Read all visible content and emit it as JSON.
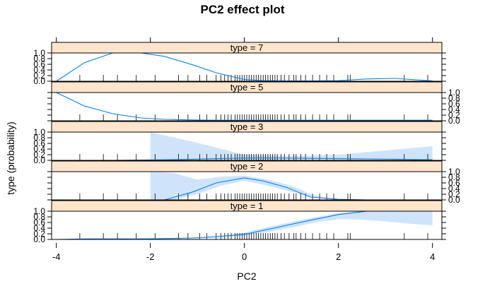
{
  "chart_data": {
    "type": "line",
    "title": "PC2 effect plot",
    "xlabel": "PC2",
    "ylabel": "type (probability)",
    "xlim": [
      -4.1,
      4.2
    ],
    "ylim": [
      0,
      1
    ],
    "x_ticks": [
      "-4",
      "-2",
      "0",
      "2",
      "4"
    ],
    "y_ticks": [
      "0.0",
      "0.2",
      "0.4",
      "0.6",
      "0.8",
      "1.0"
    ],
    "x": [
      -4.0,
      -3.4,
      -2.8,
      -2.2,
      -1.7,
      -1.1,
      -0.6,
      0.0,
      0.4,
      0.9,
      1.4,
      2.0,
      2.6,
      3.2,
      4.0
    ],
    "line_color": "#0080ff",
    "band_color": "#cfe4fb",
    "strip_color": "#ffe5cc",
    "panels": [
      {
        "label": "type = 7",
        "fit": [
          0.0,
          0.66,
          1.0,
          1.0,
          0.88,
          0.58,
          0.3,
          0.06,
          0.02,
          0.01,
          0.01,
          0.02,
          0.08,
          0.1,
          0.01
        ],
        "band": null
      },
      {
        "label": "type = 5",
        "fit": [
          1.0,
          0.52,
          0.25,
          0.1,
          0.05,
          0.03,
          0.02,
          0.02,
          0.02,
          0.02,
          0.02,
          0.02,
          0.02,
          0.02,
          0.02
        ],
        "band": null
      },
      {
        "label": "type = 3",
        "fit": [
          0.0,
          0.0,
          0.0,
          0.01,
          0.02,
          0.04,
          0.06,
          0.08,
          0.08,
          0.08,
          0.07,
          0.06,
          0.05,
          0.04,
          0.02
        ],
        "band": {
          "x": [
            -2.0,
            -1.0,
            0.0,
            1.0,
            2.0,
            3.0,
            4.0
          ],
          "lower": [
            0.0,
            0.0,
            0.03,
            0.03,
            0.02,
            0.01,
            0.0
          ],
          "upper": [
            1.0,
            0.62,
            0.2,
            0.15,
            0.2,
            0.35,
            0.5
          ]
        }
      },
      {
        "label": "type = 2",
        "fit": [
          0.0,
          0.0,
          0.0,
          0.0,
          0.0,
          0.28,
          0.6,
          0.78,
          0.67,
          0.44,
          0.1,
          0.02,
          0.0,
          0.0,
          0.0
        ],
        "band": {
          "x": [
            -2.0,
            -1.5,
            -1.0,
            -0.5,
            0.0,
            0.5,
            1.0,
            1.5,
            2.0
          ],
          "lower": [
            0.0,
            0.0,
            0.2,
            0.5,
            0.68,
            0.5,
            0.28,
            0.08,
            0.0
          ],
          "upper": [
            1.0,
            0.95,
            0.72,
            0.82,
            0.86,
            0.72,
            0.5,
            0.15,
            0.02
          ]
        }
      },
      {
        "label": "type = 1",
        "fit": [
          0.0,
          0.02,
          0.02,
          0.02,
          0.03,
          0.05,
          0.1,
          0.18,
          0.32,
          0.5,
          0.68,
          0.88,
          1.0,
          1.0,
          1.0
        ],
        "band": {
          "x": [
            -2.0,
            -1.0,
            -0.5,
            0.0,
            0.5,
            1.0,
            1.5,
            2.0,
            2.5,
            3.0,
            3.5,
            4.0
          ],
          "lower": [
            0.0,
            0.03,
            0.07,
            0.14,
            0.26,
            0.42,
            0.6,
            0.72,
            0.7,
            0.64,
            0.56,
            0.5
          ],
          "upper": [
            0.04,
            0.06,
            0.12,
            0.24,
            0.44,
            0.62,
            0.78,
            0.94,
            1.0,
            1.0,
            1.0,
            1.0
          ]
        }
      }
    ],
    "rug": [
      -3.5,
      -3.0,
      -2.7,
      -2.3,
      -1.9,
      -1.4,
      -1.2,
      -0.95,
      -0.8,
      -0.6,
      -0.5,
      -0.42,
      -0.35,
      -0.28,
      -0.2,
      -0.15,
      -0.1,
      -0.05,
      0.0,
      0.05,
      0.1,
      0.15,
      0.2,
      0.25,
      0.3,
      0.35,
      0.4,
      0.45,
      0.5,
      0.55,
      0.6,
      0.65,
      0.7,
      0.78,
      0.85,
      0.95,
      1.05,
      1.1,
      1.2,
      1.3,
      1.45,
      1.6,
      1.75,
      1.9,
      2.2,
      2.25,
      3.4,
      3.9
    ]
  }
}
